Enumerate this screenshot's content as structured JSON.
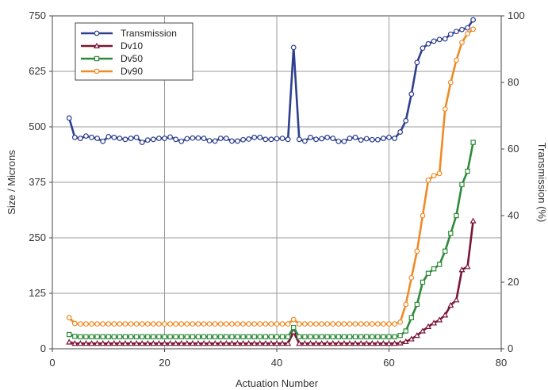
{
  "chart_data": {
    "type": "line",
    "xlabel": "Actuation Number",
    "ylabel_left": "Size / Microns",
    "ylabel_right": "Transmission (%)",
    "xlim": [
      0,
      80
    ],
    "ylim_left": [
      0,
      750
    ],
    "ylim_right": [
      0,
      100
    ],
    "x_ticks": [
      "0",
      "20",
      "40",
      "60",
      "80"
    ],
    "y_ticks_left": [
      "0",
      "125",
      "250",
      "375",
      "500",
      "625",
      "750"
    ],
    "y_ticks_right": [
      "0",
      "20",
      "40",
      "60",
      "80",
      "100"
    ],
    "grid": true,
    "legend_position": "top-left",
    "x": [
      3,
      4,
      5,
      6,
      7,
      8,
      9,
      10,
      11,
      12,
      13,
      14,
      15,
      16,
      17,
      18,
      19,
      20,
      21,
      22,
      23,
      24,
      25,
      26,
      27,
      28,
      29,
      30,
      31,
      32,
      33,
      34,
      35,
      36,
      37,
      38,
      39,
      40,
      41,
      42,
      43,
      44,
      45,
      46,
      47,
      48,
      49,
      50,
      51,
      52,
      53,
      54,
      55,
      56,
      57,
      58,
      59,
      60,
      61,
      62,
      63,
      64,
      65,
      66,
      67,
      68,
      69,
      70,
      71,
      72,
      73,
      74,
      75
    ],
    "series": [
      {
        "name": "Transmission",
        "axis": "right",
        "color": "#2e3f8f",
        "marker": "circle",
        "values": [
          69.3,
          63.5,
          63.2,
          63.9,
          63.5,
          63.2,
          62.3,
          63.7,
          63.5,
          63.2,
          62.9,
          63.2,
          63.5,
          62,
          62.7,
          62.9,
          63.2,
          63.2,
          63.6,
          62.9,
          62.3,
          63.1,
          63.3,
          63.3,
          63.2,
          62.5,
          62.4,
          63.2,
          63.2,
          62.4,
          62.4,
          62.8,
          63,
          63.5,
          63.5,
          62.9,
          62.9,
          63.1,
          63.2,
          62.9,
          90.5,
          62.9,
          62.4,
          63.5,
          62.9,
          63.1,
          63.5,
          63.2,
          62.3,
          62.3,
          63.2,
          63.5,
          62.7,
          63.1,
          62.8,
          62.8,
          63.2,
          63.5,
          63.2,
          65.1,
          68.5,
          76.5,
          86,
          90.3,
          91.6,
          92.4,
          92.9,
          93.1,
          94.5,
          95.3,
          95.9,
          96.4,
          98.8
        ]
      },
      {
        "name": "Dv10",
        "axis": "left",
        "color": "#7a1535",
        "marker": "triangle",
        "values": [
          15,
          12,
          12,
          12,
          12,
          12,
          12,
          12,
          12,
          12,
          12,
          12,
          12,
          12,
          12,
          12,
          12,
          12,
          12,
          12,
          12,
          12,
          12,
          12,
          12,
          12,
          12,
          12,
          12,
          12,
          12,
          12,
          12,
          12,
          12,
          12,
          12,
          12,
          12,
          12,
          38,
          12,
          12,
          12,
          12,
          12,
          12,
          12,
          12,
          12,
          12,
          12,
          12,
          12,
          12,
          12,
          12,
          12,
          12,
          13,
          16,
          22,
          30,
          40,
          50,
          58,
          65,
          76,
          98,
          110,
          178,
          185,
          288
        ]
      },
      {
        "name": "Dv50",
        "axis": "left",
        "color": "#2e8a3a",
        "marker": "square",
        "values": [
          32,
          28,
          27,
          27,
          27,
          27,
          27,
          27,
          27,
          27,
          27,
          27,
          27,
          27,
          27,
          27,
          27,
          27,
          27,
          27,
          27,
          27,
          27,
          27,
          27,
          27,
          27,
          27,
          27,
          27,
          27,
          27,
          27,
          27,
          27,
          27,
          27,
          27,
          27,
          27,
          48,
          27,
          27,
          27,
          27,
          27,
          27,
          27,
          27,
          27,
          27,
          27,
          27,
          27,
          27,
          27,
          27,
          27,
          27,
          30,
          40,
          70,
          100,
          150,
          170,
          180,
          190,
          220,
          260,
          300,
          370,
          400,
          465
        ]
      },
      {
        "name": "Dv90",
        "axis": "left",
        "color": "#f08a24",
        "marker": "circle",
        "values": [
          70,
          57,
          56,
          56,
          56,
          56,
          56,
          56,
          56,
          56,
          56,
          56,
          56,
          56,
          56,
          56,
          56,
          56,
          56,
          56,
          56,
          56,
          56,
          56,
          56,
          56,
          56,
          56,
          56,
          56,
          56,
          56,
          56,
          56,
          56,
          56,
          56,
          56,
          56,
          56,
          66,
          56,
          56,
          56,
          56,
          56,
          56,
          56,
          56,
          56,
          56,
          56,
          56,
          56,
          56,
          56,
          56,
          56,
          56,
          60,
          100,
          160,
          220,
          300,
          380,
          390,
          395,
          540,
          600,
          650,
          690,
          710,
          720
        ]
      }
    ]
  }
}
